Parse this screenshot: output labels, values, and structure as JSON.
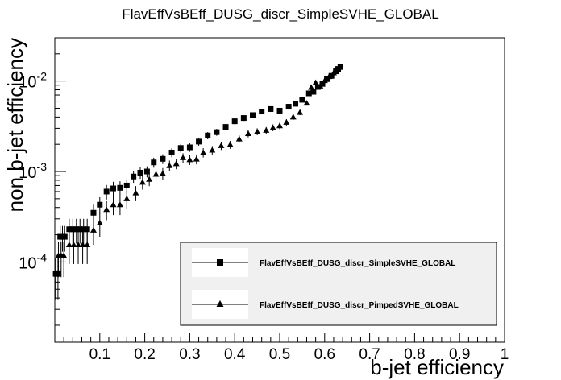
{
  "chart_data": {
    "type": "scatter",
    "title": "FlavEffVsBEff_DUSG_discr_SimpleSVHE_GLOBAL",
    "xlabel": "b-jet efficiency",
    "ylabel": "non b-jet efficiency",
    "xlim": [
      0,
      1
    ],
    "ylim": [
      1.3e-05,
      0.03
    ],
    "yscale": "log",
    "x_ticks": [
      {
        "v": 0.1,
        "label": "0.1"
      },
      {
        "v": 0.2,
        "label": "0.2"
      },
      {
        "v": 0.3,
        "label": "0.3"
      },
      {
        "v": 0.4,
        "label": "0.4"
      },
      {
        "v": 0.5,
        "label": "0.5"
      },
      {
        "v": 0.6,
        "label": "0.6"
      },
      {
        "v": 0.7,
        "label": "0.7"
      },
      {
        "v": 0.8,
        "label": "0.8"
      },
      {
        "v": 0.9,
        "label": "0.9"
      },
      {
        "v": 1.0,
        "label": "1"
      }
    ],
    "y_ticks": [
      {
        "v": 0.0001,
        "base": "10",
        "exp": "-4"
      },
      {
        "v": 0.001,
        "base": "10",
        "exp": "-3"
      },
      {
        "v": 0.01,
        "base": "10",
        "exp": "-2"
      }
    ],
    "grid": false,
    "legend_position": "bottom-right",
    "series": [
      {
        "name": "FlavEffVsBEff_DUSG_discr_SimpleSVHE_GLOBAL",
        "marker": "square",
        "color": "#000000",
        "points": [
          [
            0.002,
            7.4e-05,
            3.6e-05
          ],
          [
            0.007,
            7.4e-05,
            3.6e-05
          ],
          [
            0.012,
            0.00019,
            6e-05
          ],
          [
            0.017,
            0.00019,
            6e-05
          ],
          [
            0.022,
            0.00019,
            6e-05
          ],
          [
            0.032,
            0.00023,
            7e-05
          ],
          [
            0.04,
            0.00023,
            7e-05
          ],
          [
            0.048,
            0.00023,
            7e-05
          ],
          [
            0.056,
            0.00023,
            7e-05
          ],
          [
            0.064,
            0.00023,
            7e-05
          ],
          [
            0.072,
            0.00023,
            7e-05
          ],
          [
            0.086,
            0.00035,
            8e-05
          ],
          [
            0.1,
            0.00043,
            9e-05
          ],
          [
            0.115,
            0.0006,
            0.00011
          ],
          [
            0.13,
            0.00065,
            0.00012
          ],
          [
            0.145,
            0.00066,
            0.00012
          ],
          [
            0.16,
            0.0007,
            0.00012
          ],
          [
            0.175,
            0.00088,
            0.00013
          ],
          [
            0.19,
            0.00097,
            0.00014
          ],
          [
            0.205,
            0.001,
            0.00014
          ],
          [
            0.22,
            0.00126,
            0.00016
          ],
          [
            0.24,
            0.00138,
            0.00017
          ],
          [
            0.26,
            0.00162,
            0.00018
          ],
          [
            0.28,
            0.00182,
            0.0002
          ],
          [
            0.3,
            0.00185,
            0.0002
          ],
          [
            0.32,
            0.00214,
            0.00021
          ],
          [
            0.34,
            0.0025,
            0.00023
          ],
          [
            0.36,
            0.00272,
            0.00024
          ],
          [
            0.38,
            0.00311,
            0.00025
          ],
          [
            0.4,
            0.00359,
            0.00027
          ],
          [
            0.42,
            0.0039,
            0.00028
          ],
          [
            0.44,
            0.0042,
            0.0003
          ],
          [
            0.46,
            0.0046,
            0.00031
          ],
          [
            0.48,
            0.0049,
            0.00032
          ],
          [
            0.5,
            0.0047,
            0.00031
          ],
          [
            0.52,
            0.0052,
            0.00033
          ],
          [
            0.535,
            0.0056,
            0.00034
          ],
          [
            0.55,
            0.0062,
            0.00036
          ],
          [
            0.565,
            0.0073,
            0.00039
          ],
          [
            0.575,
            0.0076,
            0.0004
          ],
          [
            0.585,
            0.0086,
            0.00043
          ],
          [
            0.595,
            0.0093,
            0.00045
          ],
          [
            0.605,
            0.0105,
            0.00048
          ],
          [
            0.615,
            0.0114,
            0.0005
          ],
          [
            0.625,
            0.0128,
            0.00053
          ],
          [
            0.63,
            0.0136,
            0.00055
          ],
          [
            0.635,
            0.0143,
            0.00056
          ]
        ]
      },
      {
        "name": "FlavEffVsBEff_DUSG_discr_PimpedSVHE_GLOBAL",
        "marker": "triangle",
        "color": "#000000",
        "points": [
          [
            0.008,
            0.000118,
            5e-05
          ],
          [
            0.014,
            0.000118,
            5e-05
          ],
          [
            0.02,
            0.000118,
            5e-05
          ],
          [
            0.032,
            0.000155,
            6e-05
          ],
          [
            0.042,
            0.000155,
            6e-05
          ],
          [
            0.052,
            0.000155,
            6e-05
          ],
          [
            0.062,
            0.000155,
            6e-05
          ],
          [
            0.072,
            0.000155,
            6e-05
          ],
          [
            0.086,
            0.000225,
            7e-05
          ],
          [
            0.1,
            0.00027,
            8e-05
          ],
          [
            0.115,
            0.00038,
            9e-05
          ],
          [
            0.13,
            0.00043,
            0.0001
          ],
          [
            0.145,
            0.00043,
            0.0001
          ],
          [
            0.16,
            0.0005,
            0.00011
          ],
          [
            0.18,
            0.00058,
            0.00011
          ],
          [
            0.195,
            0.00076,
            0.00013
          ],
          [
            0.21,
            0.00082,
            0.00013
          ],
          [
            0.225,
            0.00093,
            0.00014
          ],
          [
            0.24,
            0.00095,
            0.00014
          ],
          [
            0.255,
            0.00116,
            0.00016
          ],
          [
            0.27,
            0.00122,
            0.00016
          ],
          [
            0.285,
            0.00142,
            0.00017
          ],
          [
            0.3,
            0.00135,
            0.00017
          ],
          [
            0.315,
            0.00137,
            0.00017
          ],
          [
            0.33,
            0.00162,
            0.00019
          ],
          [
            0.35,
            0.00172,
            0.00019
          ],
          [
            0.37,
            0.00193,
            0.0002
          ],
          [
            0.39,
            0.00198,
            0.0002
          ],
          [
            0.41,
            0.00229,
            0.00022
          ],
          [
            0.43,
            0.00262,
            0.00024
          ],
          [
            0.45,
            0.00276,
            0.00024
          ],
          [
            0.47,
            0.00285,
            0.00025
          ],
          [
            0.485,
            0.00305,
            0.00026
          ],
          [
            0.5,
            0.0032,
            0.00026
          ],
          [
            0.515,
            0.0035,
            0.00028
          ],
          [
            0.53,
            0.004,
            0.0003
          ],
          [
            0.545,
            0.0045,
            0.00031
          ],
          [
            0.56,
            0.0057,
            0.00035
          ],
          [
            0.57,
            0.0085,
            0.00043
          ],
          [
            0.58,
            0.0096,
            0.00045
          ],
          [
            0.59,
            0.0088,
            0.00043
          ],
          [
            0.6,
            0.0101,
            0.00046
          ],
          [
            0.61,
            0.0112,
            0.00049
          ],
          [
            0.62,
            0.0123,
            0.00052
          ]
        ]
      }
    ]
  }
}
